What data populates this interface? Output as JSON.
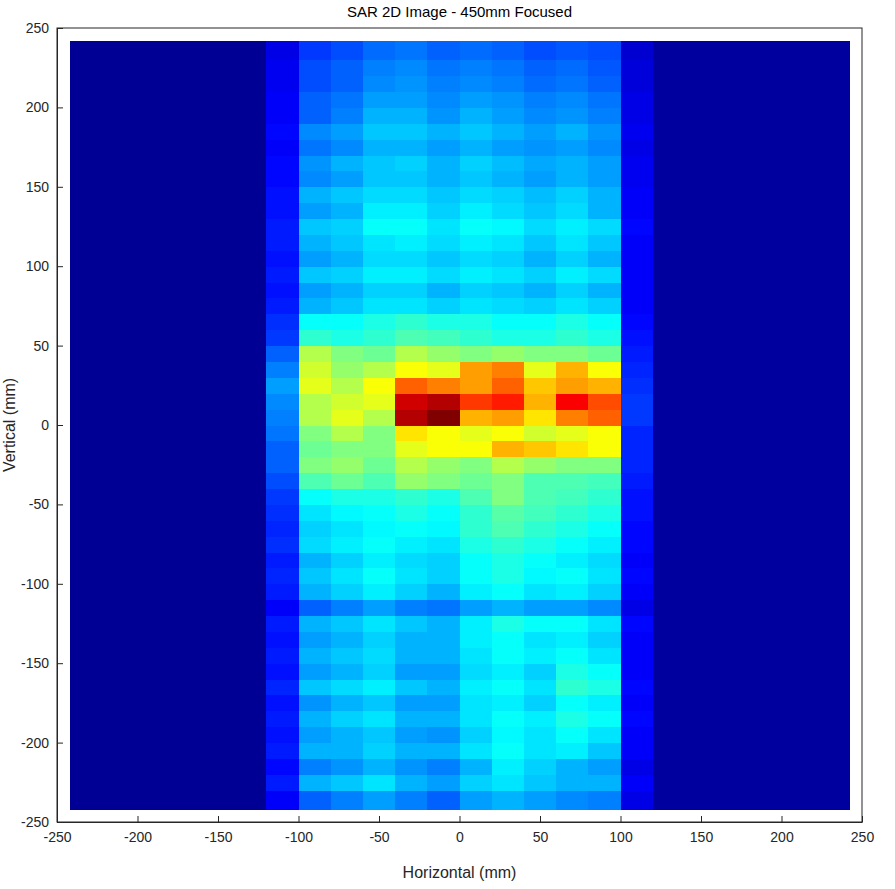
{
  "chart_data": {
    "type": "heatmap",
    "title": "SAR 2D Image - 450mm Focused",
    "x_label": "Horizontal (mm)",
    "y_label": "Vertical (mm)",
    "xlim": [
      -250,
      250
    ],
    "xticks": [
      -250,
      -200,
      -150,
      -100,
      -50,
      0,
      50,
      100,
      150,
      200,
      250
    ],
    "ylim": [
      -250,
      250
    ],
    "yticks": [
      -250,
      -200,
      -150,
      -100,
      -50,
      0,
      50,
      100,
      150,
      200,
      250
    ],
    "x_edges": [
      -242,
      -120,
      -100,
      -80,
      -60,
      -40,
      -20,
      0,
      20,
      40,
      60,
      80,
      100,
      120,
      242
    ],
    "y_edges": [
      -242,
      -230,
      -220,
      -210,
      -200,
      -190,
      -180,
      -170,
      -160,
      -150,
      -140,
      -130,
      -120,
      -110,
      -100,
      -90,
      -80,
      -70,
      -60,
      -50,
      -40,
      -30,
      -20,
      -10,
      0,
      10,
      20,
      30,
      40,
      50,
      60,
      70,
      80,
      90,
      100,
      110,
      120,
      130,
      140,
      150,
      160,
      170,
      180,
      190,
      200,
      210,
      220,
      230,
      242
    ],
    "color_range": [
      0,
      1
    ],
    "values": [
      [
        0.02,
        0.12,
        0.22,
        0.25,
        0.28,
        0.25,
        0.22,
        0.28,
        0.3,
        0.28,
        0.26,
        0.25,
        0.1,
        0.03
      ],
      [
        0.02,
        0.15,
        0.3,
        0.32,
        0.35,
        0.3,
        0.28,
        0.33,
        0.35,
        0.32,
        0.3,
        0.3,
        0.12,
        0.03
      ],
      [
        0.02,
        0.13,
        0.25,
        0.27,
        0.3,
        0.27,
        0.25,
        0.3,
        0.36,
        0.33,
        0.3,
        0.28,
        0.1,
        0.03
      ],
      [
        0.02,
        0.15,
        0.3,
        0.3,
        0.33,
        0.3,
        0.3,
        0.35,
        0.38,
        0.35,
        0.36,
        0.32,
        0.12,
        0.03
      ],
      [
        0.02,
        0.14,
        0.28,
        0.3,
        0.32,
        0.28,
        0.27,
        0.33,
        0.37,
        0.35,
        0.38,
        0.35,
        0.12,
        0.03
      ],
      [
        0.02,
        0.15,
        0.3,
        0.33,
        0.35,
        0.3,
        0.3,
        0.35,
        0.38,
        0.36,
        0.4,
        0.38,
        0.13,
        0.03
      ],
      [
        0.02,
        0.14,
        0.27,
        0.3,
        0.32,
        0.28,
        0.28,
        0.35,
        0.36,
        0.33,
        0.38,
        0.36,
        0.12,
        0.03
      ],
      [
        0.02,
        0.16,
        0.32,
        0.34,
        0.36,
        0.32,
        0.3,
        0.36,
        0.38,
        0.35,
        0.42,
        0.4,
        0.13,
        0.03
      ],
      [
        0.02,
        0.14,
        0.28,
        0.3,
        0.33,
        0.28,
        0.28,
        0.34,
        0.36,
        0.33,
        0.4,
        0.38,
        0.12,
        0.03
      ],
      [
        0.02,
        0.15,
        0.3,
        0.32,
        0.34,
        0.3,
        0.3,
        0.35,
        0.38,
        0.36,
        0.38,
        0.35,
        0.12,
        0.03
      ],
      [
        0.02,
        0.14,
        0.28,
        0.3,
        0.33,
        0.3,
        0.3,
        0.36,
        0.38,
        0.35,
        0.36,
        0.33,
        0.12,
        0.03
      ],
      [
        0.02,
        0.15,
        0.3,
        0.32,
        0.35,
        0.32,
        0.3,
        0.36,
        0.4,
        0.38,
        0.38,
        0.35,
        0.13,
        0.03
      ],
      [
        0.02,
        0.12,
        0.22,
        0.25,
        0.28,
        0.25,
        0.24,
        0.28,
        0.3,
        0.28,
        0.28,
        0.26,
        0.1,
        0.03
      ],
      [
        0.02,
        0.15,
        0.3,
        0.33,
        0.36,
        0.33,
        0.3,
        0.36,
        0.38,
        0.35,
        0.36,
        0.33,
        0.12,
        0.03
      ],
      [
        0.02,
        0.16,
        0.32,
        0.35,
        0.38,
        0.35,
        0.33,
        0.38,
        0.4,
        0.37,
        0.38,
        0.35,
        0.13,
        0.03
      ],
      [
        0.02,
        0.15,
        0.3,
        0.33,
        0.36,
        0.34,
        0.33,
        0.38,
        0.4,
        0.38,
        0.36,
        0.34,
        0.12,
        0.03
      ],
      [
        0.02,
        0.17,
        0.34,
        0.36,
        0.38,
        0.36,
        0.35,
        0.4,
        0.42,
        0.4,
        0.38,
        0.36,
        0.13,
        0.03
      ],
      [
        0.02,
        0.16,
        0.33,
        0.35,
        0.37,
        0.38,
        0.37,
        0.42,
        0.45,
        0.42,
        0.4,
        0.38,
        0.13,
        0.03
      ],
      [
        0.02,
        0.17,
        0.35,
        0.37,
        0.38,
        0.4,
        0.38,
        0.42,
        0.46,
        0.44,
        0.42,
        0.4,
        0.14,
        0.03
      ],
      [
        0.02,
        0.18,
        0.38,
        0.4,
        0.4,
        0.42,
        0.4,
        0.45,
        0.5,
        0.45,
        0.44,
        0.42,
        0.14,
        0.03
      ],
      [
        0.02,
        0.2,
        0.45,
        0.48,
        0.45,
        0.52,
        0.5,
        0.48,
        0.5,
        0.45,
        0.45,
        0.44,
        0.15,
        0.03
      ],
      [
        0.02,
        0.22,
        0.5,
        0.52,
        0.48,
        0.55,
        0.52,
        0.5,
        0.55,
        0.52,
        0.5,
        0.5,
        0.16,
        0.03
      ],
      [
        0.02,
        0.22,
        0.48,
        0.5,
        0.5,
        0.6,
        0.62,
        0.62,
        0.7,
        0.68,
        0.65,
        0.62,
        0.16,
        0.03
      ],
      [
        0.02,
        0.24,
        0.5,
        0.55,
        0.5,
        0.65,
        0.62,
        0.6,
        0.62,
        0.58,
        0.6,
        0.62,
        0.16,
        0.03
      ],
      [
        0.02,
        0.25,
        0.55,
        0.6,
        0.55,
        0.95,
        1.0,
        0.7,
        0.72,
        0.65,
        0.75,
        0.78,
        0.18,
        0.03
      ],
      [
        0.02,
        0.26,
        0.55,
        0.58,
        0.6,
        0.92,
        0.95,
        0.82,
        0.85,
        0.7,
        0.88,
        0.8,
        0.18,
        0.03
      ],
      [
        0.02,
        0.28,
        0.6,
        0.55,
        0.62,
        0.78,
        0.75,
        0.72,
        0.78,
        0.68,
        0.72,
        0.7,
        0.17,
        0.03
      ],
      [
        0.02,
        0.25,
        0.58,
        0.52,
        0.55,
        0.62,
        0.6,
        0.72,
        0.75,
        0.6,
        0.7,
        0.62,
        0.16,
        0.03
      ],
      [
        0.02,
        0.22,
        0.55,
        0.5,
        0.48,
        0.55,
        0.52,
        0.5,
        0.52,
        0.5,
        0.5,
        0.48,
        0.15,
        0.03
      ],
      [
        0.02,
        0.18,
        0.42,
        0.4,
        0.42,
        0.45,
        0.44,
        0.42,
        0.4,
        0.4,
        0.42,
        0.4,
        0.14,
        0.03
      ],
      [
        0.02,
        0.17,
        0.38,
        0.38,
        0.4,
        0.42,
        0.4,
        0.4,
        0.38,
        0.38,
        0.4,
        0.38,
        0.13,
        0.03
      ],
      [
        0.02,
        0.15,
        0.3,
        0.32,
        0.35,
        0.35,
        0.33,
        0.35,
        0.34,
        0.33,
        0.35,
        0.33,
        0.12,
        0.03
      ],
      [
        0.02,
        0.14,
        0.28,
        0.3,
        0.33,
        0.33,
        0.3,
        0.33,
        0.32,
        0.3,
        0.33,
        0.3,
        0.12,
        0.03
      ],
      [
        0.02,
        0.15,
        0.32,
        0.33,
        0.36,
        0.36,
        0.34,
        0.36,
        0.35,
        0.33,
        0.36,
        0.34,
        0.12,
        0.03
      ],
      [
        0.02,
        0.14,
        0.28,
        0.3,
        0.34,
        0.34,
        0.32,
        0.34,
        0.33,
        0.3,
        0.33,
        0.3,
        0.12,
        0.03
      ],
      [
        0.02,
        0.15,
        0.3,
        0.32,
        0.35,
        0.36,
        0.34,
        0.36,
        0.35,
        0.32,
        0.35,
        0.32,
        0.12,
        0.03
      ],
      [
        0.02,
        0.15,
        0.32,
        0.33,
        0.38,
        0.38,
        0.35,
        0.38,
        0.37,
        0.34,
        0.36,
        0.34,
        0.13,
        0.03
      ],
      [
        0.02,
        0.14,
        0.28,
        0.3,
        0.36,
        0.36,
        0.33,
        0.36,
        0.34,
        0.32,
        0.34,
        0.3,
        0.12,
        0.03
      ],
      [
        0.02,
        0.14,
        0.3,
        0.32,
        0.34,
        0.34,
        0.32,
        0.34,
        0.33,
        0.31,
        0.33,
        0.3,
        0.12,
        0.03
      ],
      [
        0.02,
        0.13,
        0.26,
        0.28,
        0.32,
        0.32,
        0.3,
        0.32,
        0.3,
        0.28,
        0.3,
        0.28,
        0.11,
        0.03
      ],
      [
        0.02,
        0.13,
        0.27,
        0.3,
        0.32,
        0.33,
        0.3,
        0.33,
        0.31,
        0.29,
        0.3,
        0.28,
        0.11,
        0.03
      ],
      [
        0.02,
        0.12,
        0.24,
        0.26,
        0.3,
        0.3,
        0.28,
        0.3,
        0.28,
        0.27,
        0.28,
        0.26,
        0.1,
        0.03
      ],
      [
        0.02,
        0.13,
        0.26,
        0.28,
        0.32,
        0.32,
        0.3,
        0.32,
        0.3,
        0.28,
        0.3,
        0.27,
        0.11,
        0.03
      ],
      [
        0.02,
        0.12,
        0.22,
        0.25,
        0.3,
        0.3,
        0.27,
        0.3,
        0.28,
        0.26,
        0.27,
        0.25,
        0.1,
        0.03
      ],
      [
        0.02,
        0.12,
        0.22,
        0.24,
        0.28,
        0.28,
        0.26,
        0.28,
        0.27,
        0.25,
        0.26,
        0.24,
        0.1,
        0.03
      ],
      [
        0.02,
        0.11,
        0.2,
        0.22,
        0.26,
        0.27,
        0.25,
        0.26,
        0.25,
        0.23,
        0.24,
        0.22,
        0.09,
        0.03
      ],
      [
        0.02,
        0.11,
        0.2,
        0.22,
        0.25,
        0.26,
        0.24,
        0.25,
        0.24,
        0.22,
        0.23,
        0.21,
        0.09,
        0.03
      ],
      [
        0.02,
        0.1,
        0.18,
        0.2,
        0.23,
        0.24,
        0.22,
        0.23,
        0.22,
        0.2,
        0.21,
        0.2,
        0.08,
        0.03
      ]
    ]
  }
}
